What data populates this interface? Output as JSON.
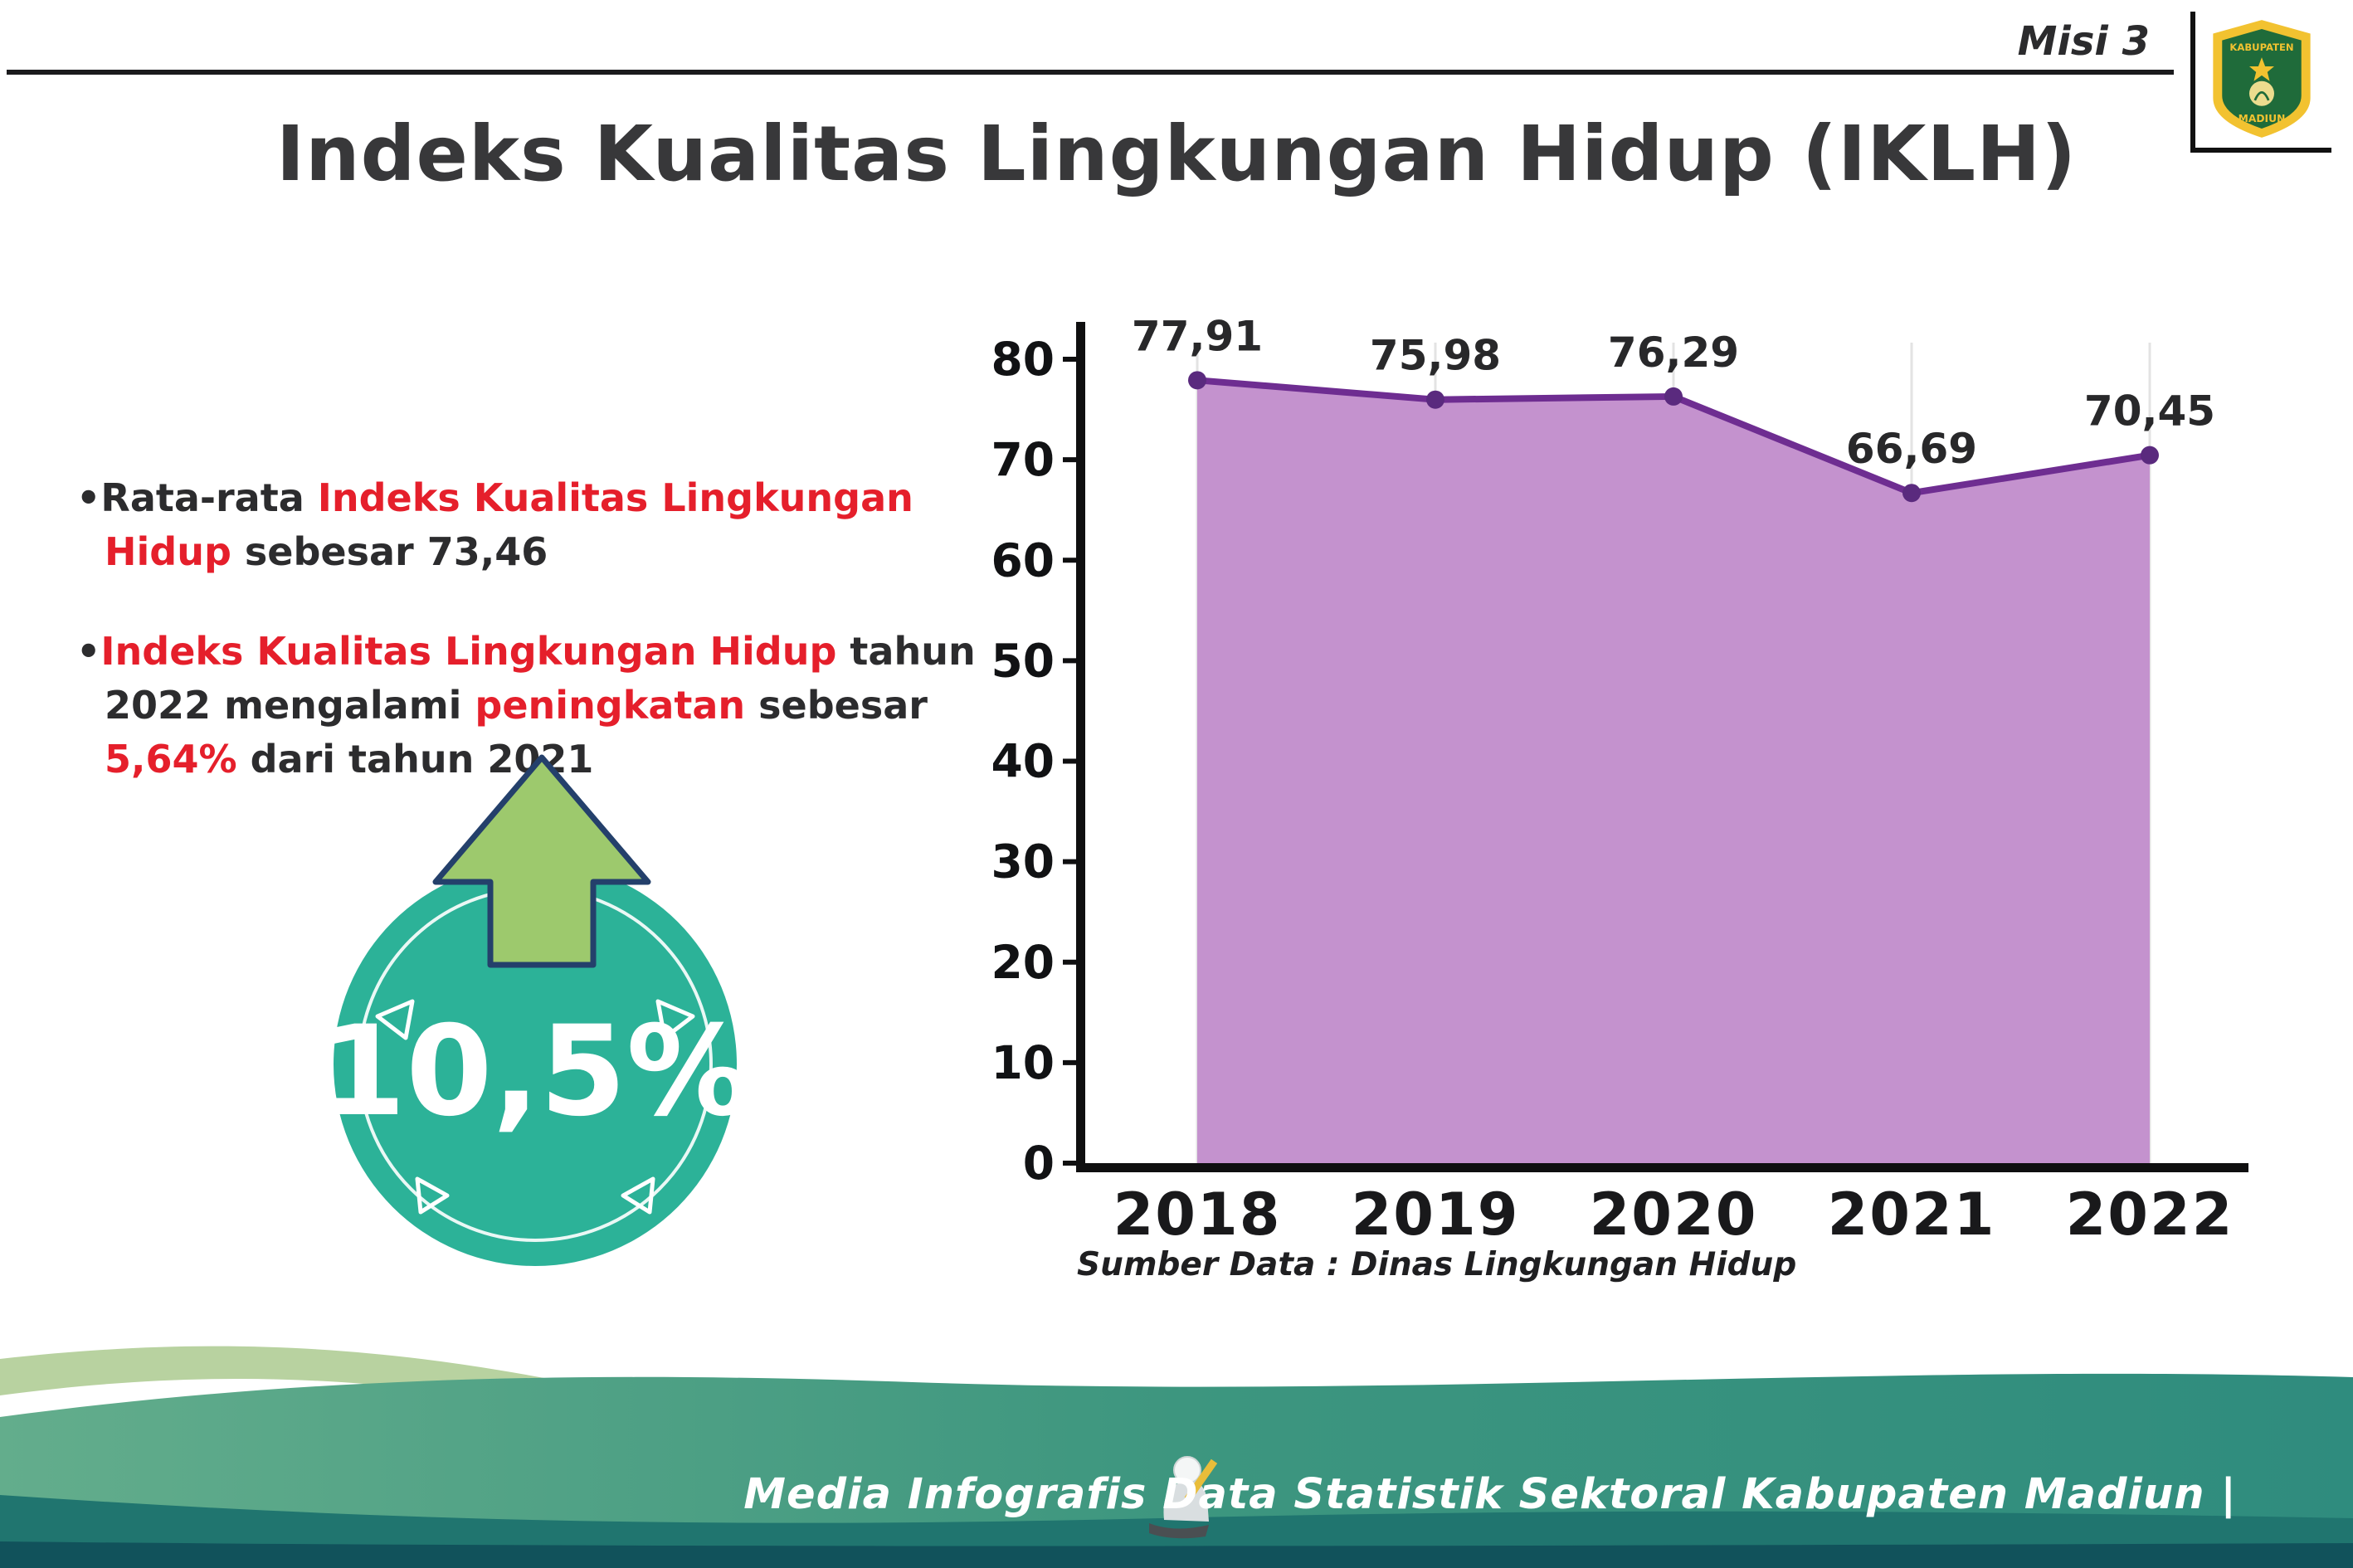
{
  "header": {
    "misi": "Misi 3",
    "title": "Indeks Kualitas Lingkungan Hidup (IKLH)"
  },
  "logo": {
    "line1": "KABUPATEN",
    "line2": "MADIUN"
  },
  "bullets": {
    "marker": "•",
    "b1": {
      "seg1": "Rata-rata ",
      "seg2_red": "Indeks Kualitas Lingkungan Hidup",
      "seg3": " sebesar 73,46"
    },
    "b2": {
      "seg1_red": "Indeks Kualitas Lingkungan Hidup",
      "seg2": " tahun 2022 mengalami ",
      "seg3_red": "peningkatan",
      "seg4": " sebesar ",
      "seg5_red": "5,64%",
      "seg6": " dari tahun 2021"
    }
  },
  "badge": {
    "value": "10,5%"
  },
  "chart_data": {
    "type": "area",
    "title": "Indeks Kualitas Lingkungan Hidup (IKLH) 2018-2022",
    "categories": [
      "2018",
      "2019",
      "2020",
      "2021",
      "2022"
    ],
    "values": [
      77.91,
      75.98,
      76.29,
      66.69,
      70.45
    ],
    "point_labels": [
      "77,91",
      "75,98",
      "76,29",
      "66,69",
      "70,45"
    ],
    "ylim": [
      0,
      80
    ],
    "ytick_step": 10,
    "grid": "faint vertical gridlines per year",
    "legend": "none",
    "line_color": "#6e2d91",
    "dot_color": "#5a2a7e",
    "fill_color": "#c492ce",
    "source_note": "Sumber Data : Dinas Lingkungan Hidup"
  },
  "footer": {
    "credit": "Media Infografis Data Statistik Sektoral Kabupaten Madiun |"
  },
  "colors": {
    "highlight_red": "#e51f2b",
    "badge_teal": "#2cb298",
    "arrow_green": "#9dc96d",
    "footer_teal": "#2f8c7e",
    "footer_dark_teal": "#20756f",
    "footer_light_green": "#b8d2a0"
  }
}
